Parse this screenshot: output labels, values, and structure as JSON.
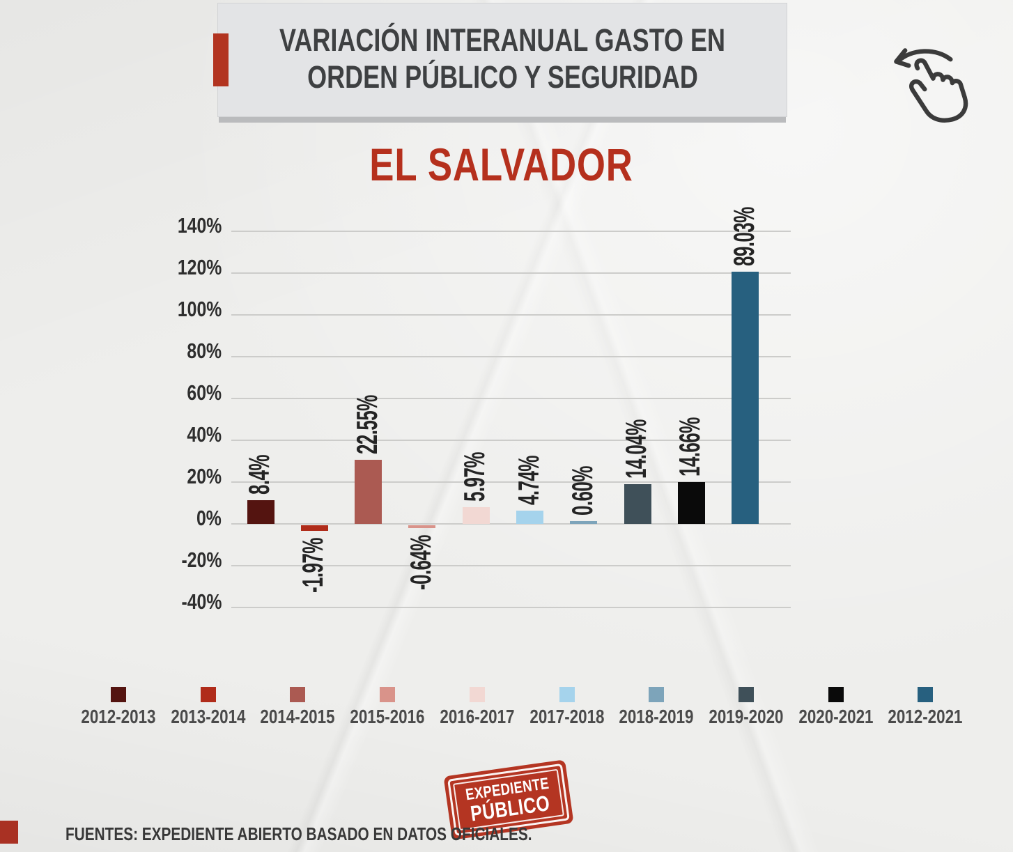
{
  "header": {
    "title_line1": "VARIACIÓN INTERANUAL GASTO EN",
    "title_line2": "ORDEN PÚBLICO Y SEGURIDAD"
  },
  "subtitle": "EL SALVADOR",
  "chart_data": {
    "type": "bar",
    "title": "EL SALVADOR",
    "categories": [
      "2012-2013",
      "2013-2014",
      "2014-2015",
      "2015-2016",
      "2016-2017",
      "2017-2018",
      "2018-2019",
      "2019-2020",
      "2020-2021",
      "2012-2021"
    ],
    "values": [
      8.4,
      -1.97,
      22.55,
      -0.64,
      5.97,
      4.74,
      0.6,
      14.04,
      14.66,
      89.03
    ],
    "value_labels": [
      "8.4%",
      "-1.97%",
      "22.55%",
      "-0.64%",
      "5.97%",
      "4.74%",
      "0.60%",
      "14.04%",
      "14.66%",
      "89.03%"
    ],
    "bar_colors": [
      "#541410",
      "#b02c1a",
      "#ab5a52",
      "#d9938a",
      "#f2d8d3",
      "#a5d3ec",
      "#7da4ba",
      "#3f5059",
      "#0a0a0a",
      "#27607f"
    ],
    "y_ticks": [
      140,
      120,
      100,
      80,
      60,
      40,
      20,
      0,
      -20,
      -40
    ],
    "y_tick_labels": [
      "140%",
      "120%",
      "100%",
      "80%",
      "60%",
      "40%",
      "20%",
      "0%",
      "-20%",
      "-40%"
    ],
    "ylim": [
      -40,
      150
    ],
    "xlabel": "",
    "ylabel": "",
    "grid": "horizontal",
    "legend_position": "bottom",
    "value_label_rotation": -90
  },
  "stamp": {
    "line1": "EXPEDIENTE",
    "line2": "PÚBLICO"
  },
  "footer": {
    "source": "FUENTES: EXPEDIENTE ABIERTO BASADO EN DATOS OFICIALES."
  },
  "icons": {
    "gesture": "swipe-left-gesture-icon"
  },
  "colors": {
    "accent_red": "#b23420",
    "title_box_bg": "#e3e4e6",
    "subtitle_red": "#b5301d",
    "paper_bg": "#eeeeec",
    "grid_line": "#ccccca",
    "text_dark": "#3e4042"
  }
}
